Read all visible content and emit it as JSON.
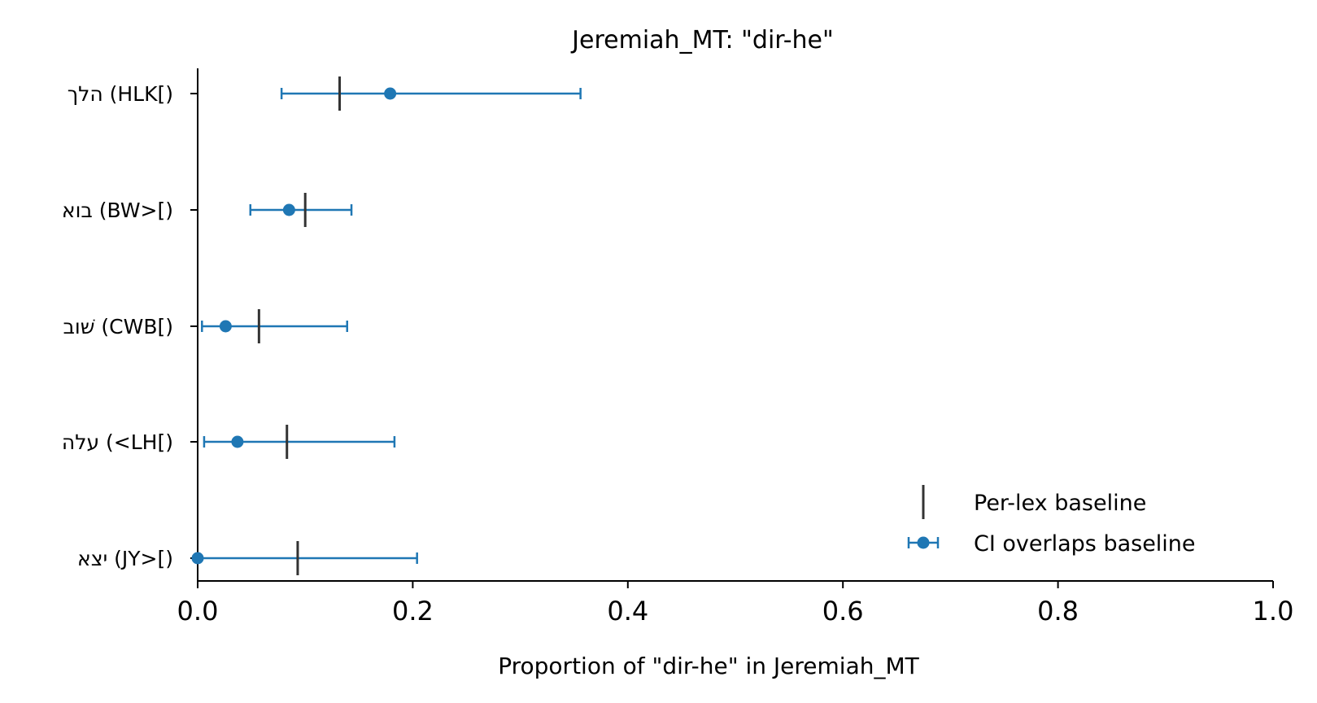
{
  "chart_data": {
    "type": "errorbar",
    "title": "Jeremiah_MT: \"dir-he\"",
    "xlabel": "Proportion of \"dir-he\" in Jeremiah_MT",
    "ylabel": "",
    "xlim": [
      0.0,
      1.0
    ],
    "xticks": [
      "0.0",
      "0.2",
      "0.4",
      "0.6",
      "0.8",
      "1.0"
    ],
    "xtick_values": [
      0.0,
      0.2,
      0.4,
      0.6,
      0.8,
      1.0
    ],
    "grid": false,
    "legend_position": "lower-right",
    "categories": [
      "הלך (HLK[)",
      "בוא (BW>[)",
      "שׁוב (CWB[)",
      "עלה (<LH[)",
      "יצא (JY>[)"
    ],
    "series": [
      {
        "name": "CI overlaps baseline",
        "color": "#1f77b4",
        "points": [
          {
            "category": "הלך (HLK[)",
            "estimate": 0.179,
            "ci_low": 0.078,
            "ci_high": 0.356
          },
          {
            "category": "בוא (BW>[)",
            "estimate": 0.085,
            "ci_low": 0.049,
            "ci_high": 0.143
          },
          {
            "category": "שׁוב (CWB[)",
            "estimate": 0.026,
            "ci_low": 0.004,
            "ci_high": 0.139
          },
          {
            "category": "עלה (<LH[)",
            "estimate": 0.037,
            "ci_low": 0.006,
            "ci_high": 0.183
          },
          {
            "category": "יצא (JY>[)",
            "estimate": 0.0,
            "ci_low": 0.0,
            "ci_high": 0.204
          }
        ]
      },
      {
        "name": "Per-lex baseline",
        "color": "#333333",
        "values": [
          0.132,
          0.1,
          0.057,
          0.083,
          0.093
        ]
      }
    ]
  }
}
